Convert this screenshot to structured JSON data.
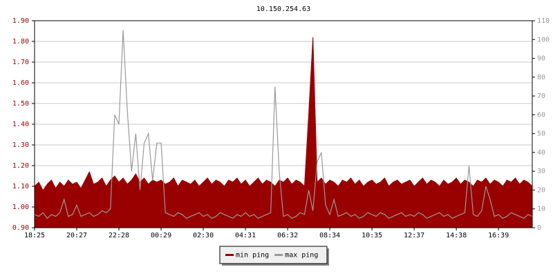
{
  "chart_data": {
    "type": "line",
    "title": "10.150.254.63",
    "categories": [
      "18:25",
      null,
      null,
      null,
      null,
      null,
      null,
      null,
      null,
      null,
      "20:27",
      null,
      null,
      null,
      null,
      null,
      null,
      null,
      null,
      null,
      "22:28",
      null,
      null,
      null,
      null,
      null,
      null,
      null,
      null,
      null,
      "00:29",
      null,
      null,
      null,
      null,
      null,
      null,
      null,
      null,
      null,
      "02:30",
      null,
      null,
      null,
      null,
      null,
      null,
      null,
      null,
      null,
      "04:31",
      null,
      null,
      null,
      null,
      null,
      null,
      null,
      null,
      null,
      "06:32",
      null,
      null,
      null,
      null,
      null,
      null,
      null,
      null,
      null,
      "08:34",
      null,
      null,
      null,
      null,
      null,
      null,
      null,
      null,
      null,
      "10:35",
      null,
      null,
      null,
      null,
      null,
      null,
      null,
      null,
      null,
      "12:37",
      null,
      null,
      null,
      null,
      null,
      null,
      null,
      null,
      null,
      "14:38",
      null,
      null,
      null,
      null,
      null,
      null,
      null,
      null,
      null,
      "16:39",
      null,
      null,
      null,
      null,
      null,
      null,
      null,
      null
    ],
    "series": [
      {
        "name": "min ping",
        "color": "#990000",
        "values": [
          1.1,
          1.12,
          1.08,
          1.11,
          1.13,
          1.09,
          1.12,
          1.1,
          1.13,
          1.11,
          1.12,
          1.09,
          1.13,
          1.17,
          1.11,
          1.12,
          1.14,
          1.1,
          1.13,
          1.15,
          1.12,
          1.14,
          1.11,
          1.13,
          1.16,
          1.12,
          1.14,
          1.11,
          1.13,
          1.12,
          1.13,
          1.11,
          1.12,
          1.14,
          1.1,
          1.13,
          1.12,
          1.11,
          1.13,
          1.1,
          1.12,
          1.14,
          1.11,
          1.13,
          1.12,
          1.1,
          1.13,
          1.12,
          1.14,
          1.11,
          1.13,
          1.1,
          1.12,
          1.14,
          1.11,
          1.13,
          1.12,
          1.1,
          1.13,
          1.12,
          1.14,
          1.11,
          1.13,
          1.12,
          1.1,
          1.45,
          1.82,
          1.12,
          1.14,
          1.11,
          1.13,
          1.12,
          1.1,
          1.13,
          1.12,
          1.14,
          1.11,
          1.13,
          1.1,
          1.12,
          1.13,
          1.11,
          1.12,
          1.14,
          1.1,
          1.12,
          1.13,
          1.11,
          1.12,
          1.13,
          1.1,
          1.12,
          1.14,
          1.11,
          1.13,
          1.12,
          1.1,
          1.13,
          1.11,
          1.12,
          1.14,
          1.11,
          1.13,
          1.12,
          1.1,
          1.13,
          1.12,
          1.14,
          1.11,
          1.13,
          1.12,
          1.1,
          1.13,
          1.12,
          1.14,
          1.11,
          1.13,
          1.12,
          1.1
        ]
      },
      {
        "name": "max ping",
        "color": "#999999",
        "axis": "y2",
        "values": [
          7,
          6,
          8,
          5,
          7,
          6,
          8,
          15,
          6,
          7,
          12,
          6,
          7,
          8,
          6,
          7,
          9,
          8,
          10,
          60,
          55,
          105,
          62,
          30,
          50,
          20,
          45,
          50,
          25,
          45,
          45,
          8,
          7,
          6,
          8,
          7,
          5,
          6,
          7,
          8,
          6,
          7,
          5,
          6,
          8,
          7,
          6,
          5,
          7,
          6,
          8,
          6,
          7,
          5,
          6,
          7,
          8,
          75,
          30,
          6,
          7,
          5,
          6,
          8,
          7,
          20,
          9,
          35,
          40,
          12,
          7,
          15,
          6,
          7,
          8,
          6,
          7,
          5,
          6,
          8,
          7,
          6,
          8,
          7,
          5,
          6,
          7,
          8,
          6,
          7,
          6,
          8,
          7,
          5,
          6,
          7,
          8,
          6,
          7,
          5,
          6,
          7,
          8,
          33,
          7,
          6,
          9,
          22,
          15,
          6,
          7,
          5,
          6,
          8,
          7,
          6,
          5,
          7,
          6
        ]
      }
    ],
    "ylim": [
      0.9,
      1.9
    ],
    "yticks": [
      {
        "value": 0.9,
        "label": "0.90"
      },
      {
        "value": 1.0,
        "label": "1.00"
      },
      {
        "value": 1.1,
        "label": "1.10"
      },
      {
        "value": 1.2,
        "label": "1.20"
      },
      {
        "value": 1.3,
        "label": "1.30"
      },
      {
        "value": 1.4,
        "label": "1.40"
      },
      {
        "value": 1.5,
        "label": "1.50"
      },
      {
        "value": 1.6,
        "label": "1.60"
      },
      {
        "value": 1.7,
        "label": "1.70"
      },
      {
        "value": 1.8,
        "label": "1.80"
      },
      {
        "value": 1.9,
        "label": "1.90"
      }
    ],
    "y2lim": [
      0,
      110
    ],
    "y2ticks": [
      0,
      10,
      20,
      30,
      40,
      50,
      60,
      70,
      80,
      90,
      100,
      110
    ],
    "grid": true,
    "legend": "bottom"
  }
}
